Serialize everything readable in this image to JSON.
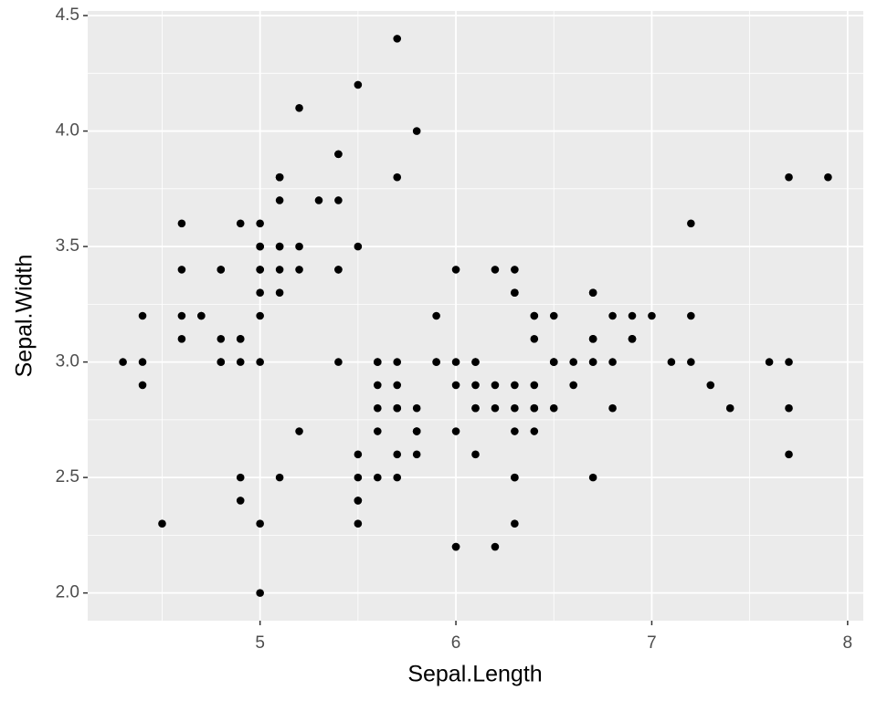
{
  "chart_data": {
    "type": "scatter",
    "x_label": "Sepal.Length",
    "y_label": "Sepal.Width",
    "xlim": [
      4.12,
      8.08
    ],
    "ylim": [
      1.88,
      4.52
    ],
    "xticks": [
      5,
      6,
      7,
      8
    ],
    "yticks": [
      {
        "value": 2,
        "label": "2.0"
      },
      {
        "value": 2.5,
        "label": "2.5"
      },
      {
        "value": 3,
        "label": "3.0"
      },
      {
        "value": 3.5,
        "label": "3.5"
      },
      {
        "value": 4,
        "label": "4.0"
      },
      {
        "value": 4.5,
        "label": "4.5"
      }
    ],
    "grid": true,
    "color": "#000000",
    "x": [
      5.1,
      4.9,
      4.7,
      4.6,
      5.0,
      5.4,
      4.6,
      5.0,
      4.4,
      4.9,
      5.4,
      4.8,
      4.8,
      4.3,
      5.8,
      5.7,
      5.4,
      5.1,
      5.7,
      5.1,
      5.4,
      5.1,
      4.6,
      5.1,
      4.8,
      5.0,
      5.0,
      5.2,
      5.2,
      4.7,
      4.8,
      5.4,
      5.2,
      5.5,
      4.9,
      5.0,
      5.5,
      4.9,
      4.4,
      5.1,
      5.0,
      4.5,
      4.4,
      5.0,
      5.1,
      4.8,
      5.1,
      4.6,
      5.3,
      5.0,
      7.0,
      6.4,
      6.9,
      5.5,
      6.5,
      5.7,
      6.3,
      4.9,
      6.6,
      5.2,
      5.0,
      5.9,
      6.0,
      6.1,
      5.6,
      6.7,
      5.6,
      5.8,
      6.2,
      5.6,
      5.9,
      6.1,
      6.3,
      6.1,
      6.4,
      6.6,
      6.8,
      6.7,
      6.0,
      5.7,
      5.5,
      5.5,
      5.8,
      6.0,
      5.4,
      6.0,
      6.7,
      6.3,
      5.6,
      5.5,
      5.5,
      6.1,
      5.8,
      5.0,
      5.6,
      5.7,
      5.7,
      6.2,
      5.1,
      5.7,
      6.3,
      5.8,
      7.1,
      6.3,
      6.5,
      7.6,
      4.9,
      7.3,
      6.7,
      7.2,
      6.5,
      6.4,
      6.8,
      5.7,
      5.8,
      6.4,
      6.5,
      7.7,
      7.7,
      6.0,
      6.9,
      5.6,
      7.7,
      6.3,
      6.7,
      7.2,
      6.2,
      6.1,
      6.4,
      7.2,
      7.4,
      7.9,
      6.4,
      6.3,
      6.1,
      7.7,
      6.3,
      6.4,
      6.0,
      6.9,
      6.7,
      6.9,
      5.8,
      6.8,
      6.7,
      6.7,
      6.3,
      6.5,
      6.2,
      5.9
    ],
    "values": [
      3.5,
      3.0,
      3.2,
      3.1,
      3.6,
      3.9,
      3.4,
      3.4,
      2.9,
      3.1,
      3.7,
      3.4,
      3.0,
      3.0,
      4.0,
      4.4,
      3.9,
      3.5,
      3.8,
      3.8,
      3.4,
      3.7,
      3.6,
      3.3,
      3.4,
      3.0,
      3.4,
      3.5,
      3.4,
      3.2,
      3.1,
      3.4,
      4.1,
      4.2,
      3.1,
      3.2,
      3.5,
      3.6,
      3.0,
      3.4,
      3.5,
      2.3,
      3.2,
      3.5,
      3.8,
      3.0,
      3.8,
      3.2,
      3.7,
      3.3,
      3.2,
      3.2,
      3.1,
      2.3,
      2.8,
      2.8,
      3.3,
      2.4,
      2.9,
      2.7,
      2.0,
      3.0,
      2.2,
      2.9,
      2.9,
      3.1,
      3.0,
      2.7,
      2.2,
      2.5,
      3.2,
      2.8,
      2.5,
      2.8,
      2.9,
      3.0,
      2.8,
      3.0,
      2.9,
      2.6,
      2.4,
      2.4,
      2.7,
      2.7,
      3.0,
      3.4,
      3.1,
      2.3,
      3.0,
      2.5,
      2.6,
      3.0,
      2.6,
      2.3,
      2.7,
      3.0,
      2.9,
      2.9,
      2.5,
      2.8,
      3.3,
      2.7,
      3.0,
      2.9,
      3.0,
      3.0,
      2.5,
      2.9,
      2.5,
      3.6,
      3.2,
      2.7,
      3.0,
      2.5,
      2.8,
      3.2,
      3.0,
      3.8,
      2.6,
      2.2,
      3.2,
      2.8,
      2.8,
      2.7,
      3.3,
      3.2,
      2.8,
      3.0,
      2.8,
      3.0,
      2.8,
      3.8,
      2.8,
      2.8,
      2.6,
      3.0,
      3.4,
      3.1,
      3.0,
      3.1,
      3.1,
      3.1,
      2.7,
      3.2,
      3.3,
      3.0,
      2.5,
      3.0,
      3.4,
      3.0
    ]
  }
}
